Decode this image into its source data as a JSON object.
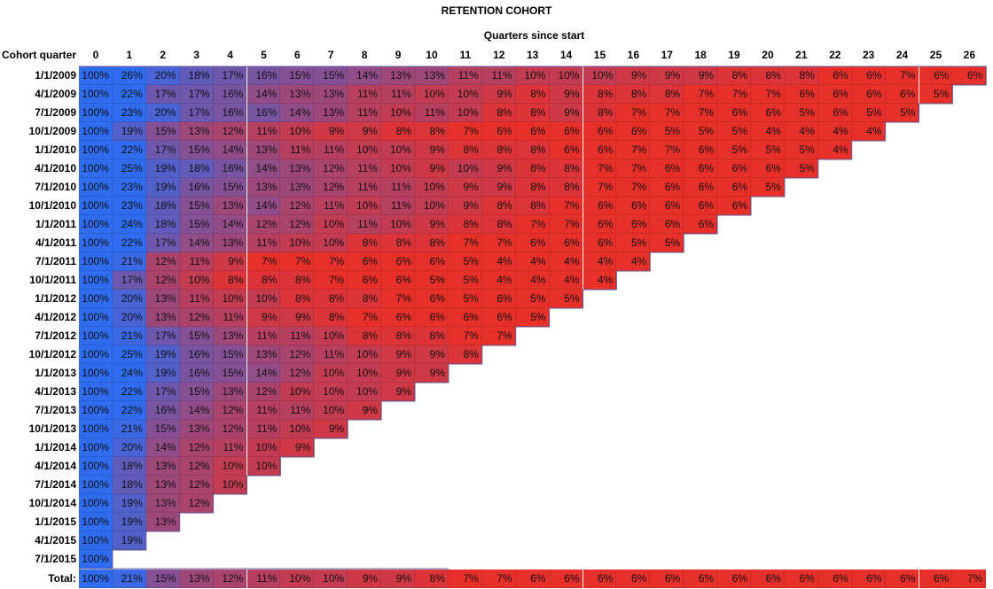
{
  "chart_data": {
    "type": "heatmap",
    "title": "RETENTION COHORT",
    "xlabel": "Quarters since start",
    "ylabel": "Cohort quarter",
    "colors": {
      "high": "#2f6cf0",
      "low": "#e8302b"
    },
    "columns": [
      "0",
      "1",
      "2",
      "3",
      "4",
      "5",
      "6",
      "7",
      "8",
      "9",
      "10",
      "11",
      "12",
      "13",
      "14",
      "15",
      "16",
      "17",
      "18",
      "19",
      "20",
      "21",
      "22",
      "23",
      "24",
      "25",
      "26"
    ],
    "rows": [
      {
        "label": "1/1/2009",
        "values": [
          "100%",
          "26%",
          "20%",
          "18%",
          "17%",
          "16%",
          "15%",
          "15%",
          "14%",
          "13%",
          "13%",
          "11%",
          "11%",
          "10%",
          "10%",
          "10%",
          "9%",
          "9%",
          "9%",
          "8%",
          "8%",
          "8%",
          "6%",
          "6%",
          "7%",
          "6%",
          "6%"
        ]
      },
      {
        "label": "4/1/2009",
        "values": [
          "100%",
          "22%",
          "17%",
          "17%",
          "16%",
          "14%",
          "13%",
          "13%",
          "11%",
          "11%",
          "10%",
          "10%",
          "9%",
          "8%",
          "9%",
          "8%",
          "8%",
          "8%",
          "7%",
          "7%",
          "7%",
          "6%",
          "6%",
          "6%",
          "6%",
          "5%"
        ]
      },
      {
        "label": "7/1/2009",
        "values": [
          "100%",
          "23%",
          "20%",
          "17%",
          "16%",
          "16%",
          "14%",
          "13%",
          "11%",
          "10%",
          "11%",
          "10%",
          "8%",
          "8%",
          "9%",
          "8%",
          "7%",
          "7%",
          "7%",
          "6%",
          "6%",
          "5%",
          "6%",
          "5%",
          "5%"
        ]
      },
      {
        "label": "10/1/2009",
        "values": [
          "100%",
          "19%",
          "15%",
          "13%",
          "12%",
          "11%",
          "10%",
          "9%",
          "9%",
          "8%",
          "8%",
          "7%",
          "6%",
          "6%",
          "6%",
          "6%",
          "6%",
          "5%",
          "5%",
          "5%",
          "4%",
          "4%",
          "4%",
          "4%"
        ]
      },
      {
        "label": "1/1/2010",
        "values": [
          "100%",
          "22%",
          "17%",
          "15%",
          "14%",
          "13%",
          "11%",
          "11%",
          "10%",
          "10%",
          "9%",
          "8%",
          "8%",
          "8%",
          "6%",
          "6%",
          "7%",
          "7%",
          "6%",
          "5%",
          "5%",
          "5%",
          "4%"
        ]
      },
      {
        "label": "4/1/2010",
        "values": [
          "100%",
          "25%",
          "19%",
          "18%",
          "16%",
          "14%",
          "13%",
          "12%",
          "11%",
          "10%",
          "9%",
          "10%",
          "9%",
          "8%",
          "8%",
          "7%",
          "7%",
          "6%",
          "6%",
          "6%",
          "6%",
          "5%"
        ]
      },
      {
        "label": "7/1/2010",
        "values": [
          "100%",
          "23%",
          "19%",
          "16%",
          "15%",
          "13%",
          "13%",
          "12%",
          "11%",
          "11%",
          "10%",
          "9%",
          "9%",
          "8%",
          "8%",
          "7%",
          "7%",
          "6%",
          "6%",
          "6%",
          "5%"
        ]
      },
      {
        "label": "10/1/2010",
        "values": [
          "100%",
          "23%",
          "18%",
          "15%",
          "13%",
          "14%",
          "12%",
          "11%",
          "10%",
          "11%",
          "10%",
          "9%",
          "8%",
          "8%",
          "7%",
          "6%",
          "6%",
          "6%",
          "6%",
          "6%"
        ]
      },
      {
        "label": "1/1/2011",
        "values": [
          "100%",
          "24%",
          "18%",
          "15%",
          "14%",
          "12%",
          "12%",
          "10%",
          "11%",
          "10%",
          "9%",
          "8%",
          "8%",
          "7%",
          "7%",
          "6%",
          "6%",
          "6%",
          "6%"
        ]
      },
      {
        "label": "4/1/2011",
        "values": [
          "100%",
          "22%",
          "17%",
          "14%",
          "13%",
          "11%",
          "10%",
          "10%",
          "8%",
          "8%",
          "8%",
          "7%",
          "7%",
          "6%",
          "6%",
          "6%",
          "5%",
          "5%"
        ]
      },
      {
        "label": "7/1/2011",
        "values": [
          "100%",
          "21%",
          "12%",
          "11%",
          "9%",
          "7%",
          "7%",
          "7%",
          "6%",
          "6%",
          "6%",
          "5%",
          "4%",
          "4%",
          "4%",
          "4%",
          "4%"
        ]
      },
      {
        "label": "10/1/2011",
        "values": [
          "100%",
          "17%",
          "12%",
          "10%",
          "8%",
          "8%",
          "8%",
          "7%",
          "6%",
          "6%",
          "5%",
          "5%",
          "4%",
          "4%",
          "4%",
          "4%"
        ]
      },
      {
        "label": "1/1/2012",
        "values": [
          "100%",
          "20%",
          "13%",
          "11%",
          "10%",
          "10%",
          "8%",
          "8%",
          "8%",
          "7%",
          "6%",
          "5%",
          "6%",
          "5%",
          "5%"
        ]
      },
      {
        "label": "4/1/2012",
        "values": [
          "100%",
          "20%",
          "13%",
          "12%",
          "11%",
          "9%",
          "9%",
          "8%",
          "7%",
          "6%",
          "6%",
          "6%",
          "6%",
          "5%"
        ]
      },
      {
        "label": "7/1/2012",
        "values": [
          "100%",
          "21%",
          "17%",
          "15%",
          "13%",
          "11%",
          "11%",
          "10%",
          "8%",
          "8%",
          "8%",
          "7%",
          "7%"
        ]
      },
      {
        "label": "10/1/2012",
        "values": [
          "100%",
          "25%",
          "19%",
          "16%",
          "15%",
          "13%",
          "12%",
          "11%",
          "10%",
          "9%",
          "9%",
          "8%"
        ]
      },
      {
        "label": "1/1/2013",
        "values": [
          "100%",
          "24%",
          "19%",
          "16%",
          "15%",
          "14%",
          "12%",
          "10%",
          "10%",
          "9%",
          "9%"
        ]
      },
      {
        "label": "4/1/2013",
        "values": [
          "100%",
          "22%",
          "17%",
          "15%",
          "13%",
          "12%",
          "10%",
          "10%",
          "10%",
          "9%"
        ]
      },
      {
        "label": "7/1/2013",
        "values": [
          "100%",
          "22%",
          "16%",
          "14%",
          "12%",
          "11%",
          "11%",
          "10%",
          "9%"
        ]
      },
      {
        "label": "10/1/2013",
        "values": [
          "100%",
          "21%",
          "15%",
          "13%",
          "12%",
          "11%",
          "10%",
          "9%"
        ]
      },
      {
        "label": "1/1/2014",
        "values": [
          "100%",
          "20%",
          "14%",
          "12%",
          "11%",
          "10%",
          "9%"
        ]
      },
      {
        "label": "4/1/2014",
        "values": [
          "100%",
          "18%",
          "13%",
          "12%",
          "10%",
          "10%"
        ]
      },
      {
        "label": "7/1/2014",
        "values": [
          "100%",
          "18%",
          "13%",
          "12%",
          "10%"
        ]
      },
      {
        "label": "10/1/2014",
        "values": [
          "100%",
          "19%",
          "13%",
          "12%"
        ]
      },
      {
        "label": "1/1/2015",
        "values": [
          "100%",
          "19%",
          "13%"
        ]
      },
      {
        "label": "4/1/2015",
        "values": [
          "100%",
          "19%"
        ]
      },
      {
        "label": "7/1/2015",
        "values": [
          "100%"
        ]
      }
    ],
    "total": {
      "label": "Total:",
      "values": [
        "100%",
        "21%",
        "15%",
        "13%",
        "12%",
        "11%",
        "10%",
        "10%",
        "9%",
        "9%",
        "8%",
        "7%",
        "7%",
        "6%",
        "6%",
        "6%",
        "6%",
        "6%",
        "6%",
        "6%",
        "6%",
        "6%",
        "6%",
        "6%",
        "6%",
        "6%",
        "7%"
      ]
    }
  }
}
